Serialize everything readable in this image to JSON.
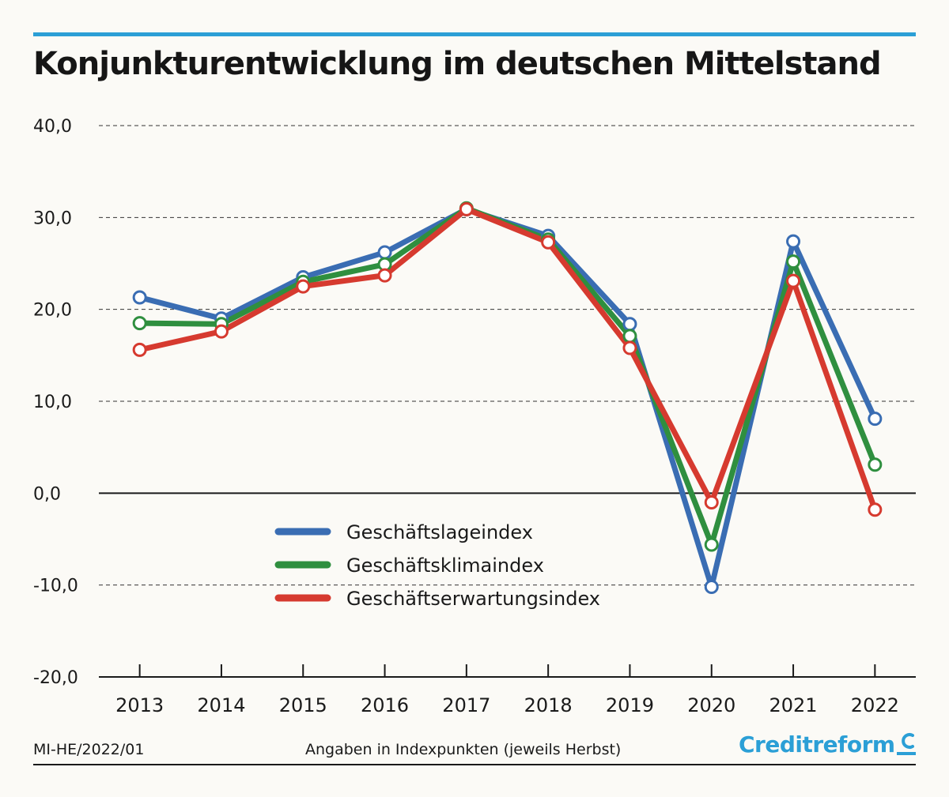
{
  "title": "Konjunkturentwicklung im deutschen Mittelstand",
  "footer": {
    "code": "MI-HE/2022/01",
    "note": "Angaben in Indexpunkten (jeweils Herbst)",
    "brand": "Creditreform"
  },
  "colors": {
    "accent": "#2b9fd6",
    "blue": "#3a6db3",
    "green": "#2f8f3f",
    "red": "#d63a2f"
  },
  "chart_data": {
    "type": "line",
    "title": "Konjunkturentwicklung im deutschen Mittelstand",
    "xlabel": "",
    "ylabel": "",
    "categories": [
      "2013",
      "2014",
      "2015",
      "2016",
      "2017",
      "2018",
      "2019",
      "2020",
      "2021",
      "2022"
    ],
    "y_ticks": [
      "40,0",
      "30,0",
      "20,0",
      "10,0",
      "0,0",
      "-10,0",
      "-20,0"
    ],
    "ylim": [
      -20,
      40
    ],
    "grid": true,
    "legend_position": "bottom-left",
    "series": [
      {
        "name": "Geschäftslageindex",
        "color": "#3a6db3",
        "values": [
          21.3,
          19.0,
          23.5,
          26.2,
          30.9,
          28.0,
          18.4,
          -10.2,
          27.4,
          8.1
        ]
      },
      {
        "name": "Geschäftsklimaindex",
        "color": "#2f8f3f",
        "values": [
          18.5,
          18.4,
          23.0,
          24.9,
          31.0,
          27.6,
          17.1,
          -5.6,
          25.2,
          3.1
        ]
      },
      {
        "name": "Geschäftserwartungsindex",
        "color": "#d63a2f",
        "values": [
          15.6,
          17.6,
          22.5,
          23.7,
          30.9,
          27.3,
          15.8,
          -1.0,
          23.1,
          -1.8
        ]
      }
    ]
  }
}
